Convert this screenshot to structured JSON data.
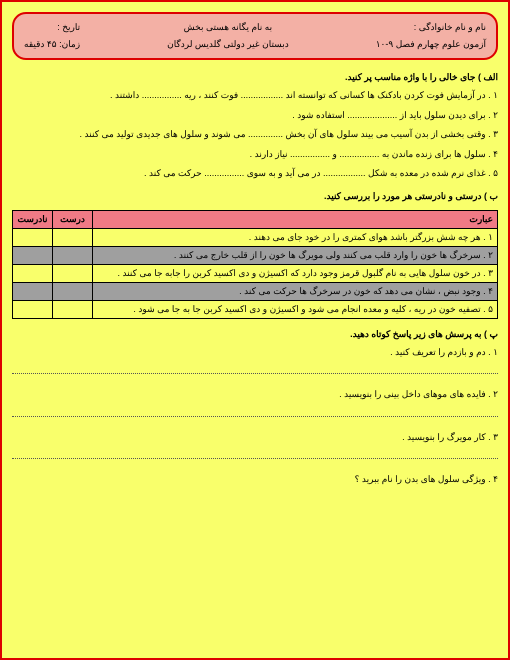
{
  "header": {
    "name_label": "نام و نام خانوادگی :",
    "exam_label": "آزمون علوم چهارم فصل ۹-۱۰",
    "top_center": "به نام یگانه هستی بخش",
    "school": "دبستان غیر دولتی گلدیس لردگان",
    "date_label": "تاریخ :",
    "time_label": "زمان: ۴۵ دقیقه"
  },
  "section_a": "الف ) جای خالی را با واژه مناسب پر کنید.",
  "q1": "۱ . در آزمایش فوت کردن بادکنک ها کسانی که توانسته اند ................. فوت کنند ، ریه ................ داشتند .",
  "q2": "۲ . برای دیدن سلول باید از .................... استفاده شود .",
  "q3": "۳ . وقتی بخشی از بدن آسیب می بیند سلول های آن بخش .............. می شوند و سلول های جدیدی تولید می کنند .",
  "q4": "۴ . سلول ها برای زنده ماندن به ................ و ................ نیاز دارند .",
  "q5": "۵ . غذای نرم شده در معده به شکل ................. در می آید و به سوی ................ حرکت می کند .",
  "section_b": "ب ) درستی و نادرستی هر مورد را بررسی کنید.",
  "table": {
    "col_statement": "عبارت",
    "col_correct": "درست",
    "col_incorrect": "نادرست",
    "rows": [
      "۱ . هر چه شش بزرگتر باشد هوای کمتری را در خود جای می دهند .",
      "۲ . سرخرگ ها خون را وارد قلب می کنند ولی مویرگ ها خون را از قلب خارج می کنند .",
      "۳ . در خون سلول هایی به نام گلبول قرمز وجود دارد که اکسیژن و دی اکسید کربن را جابه جا می کنند .",
      "۴ . وجود نبض ، نشان می دهد که خون در سرخرگ ها حرکت می کند .",
      "۵ . تصفیه خون در ریه ، کلیه و معده انجام می شود و اکسیژن و دی اکسید کربن جا به جا می شود ."
    ]
  },
  "section_c": "پ ) به پرسش های زیر پاسخ کوتاه دهید.",
  "q_c1": "۱ . دم و بازدم را تعریف کنید .",
  "q_c2": "۲ . فایده های موهای داخل بینی را بنویسید .",
  "q_c3": "۳ . کار مویرگ را بنویسید .",
  "q_c4": "۴ . ویژگی سلول های بدن را نام ببرید ؟"
}
